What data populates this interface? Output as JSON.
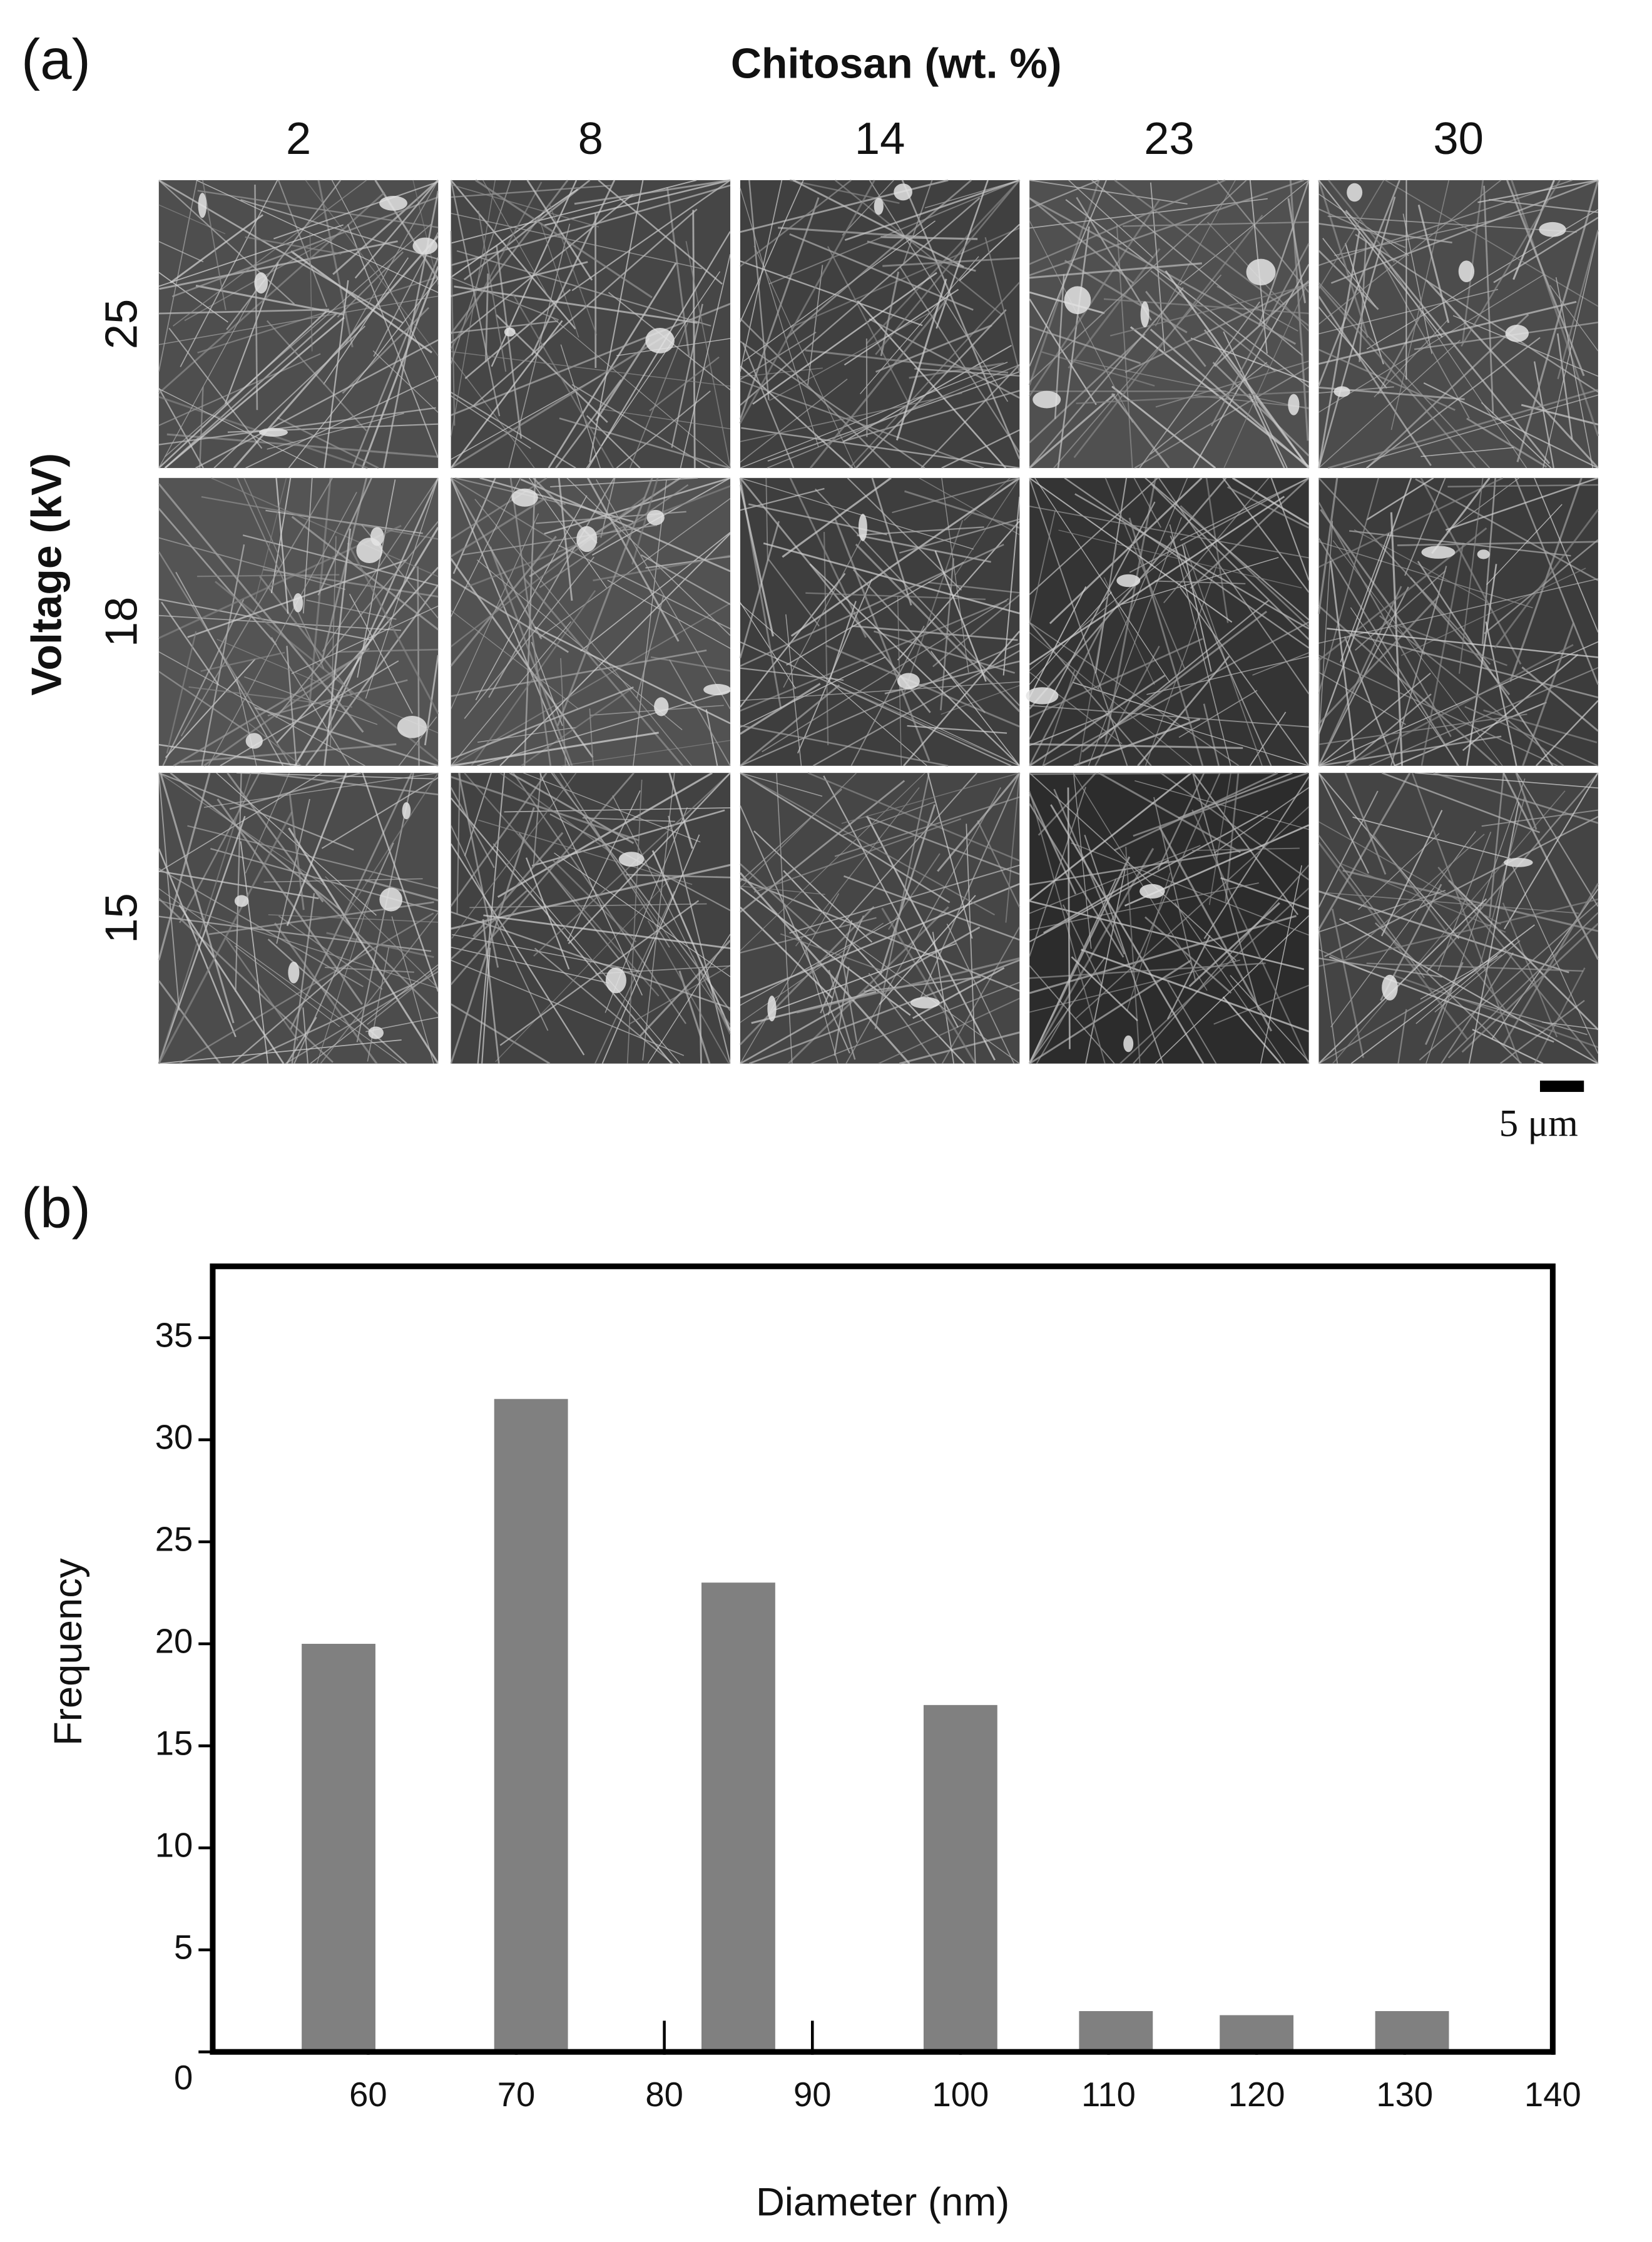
{
  "panel_a": {
    "label": "(a)",
    "title": "Chitosan (wt. %)",
    "columns": [
      "2",
      "8",
      "14",
      "23",
      "30"
    ],
    "axis_label": "Voltage (kV)",
    "rows": [
      "25",
      "18",
      "15"
    ],
    "scale_bar": "5 μm"
  },
  "panel_b": {
    "label": "(b)"
  },
  "chart_data": {
    "type": "bar",
    "x": [
      58,
      71,
      85,
      100,
      110.5,
      120,
      130.5
    ],
    "values": [
      20,
      32,
      23,
      17,
      2,
      1.8,
      2
    ],
    "color": "#808080",
    "xlabel": "Diameter (nm)",
    "ylabel": "Frequency",
    "xlim": [
      49.5,
      140
    ],
    "ylim": [
      0,
      38.5
    ],
    "xticks": [
      60,
      70,
      80,
      90,
      100,
      110,
      120,
      130,
      140
    ],
    "yticks": [
      0,
      5,
      10,
      15,
      20,
      25,
      30,
      35
    ]
  }
}
